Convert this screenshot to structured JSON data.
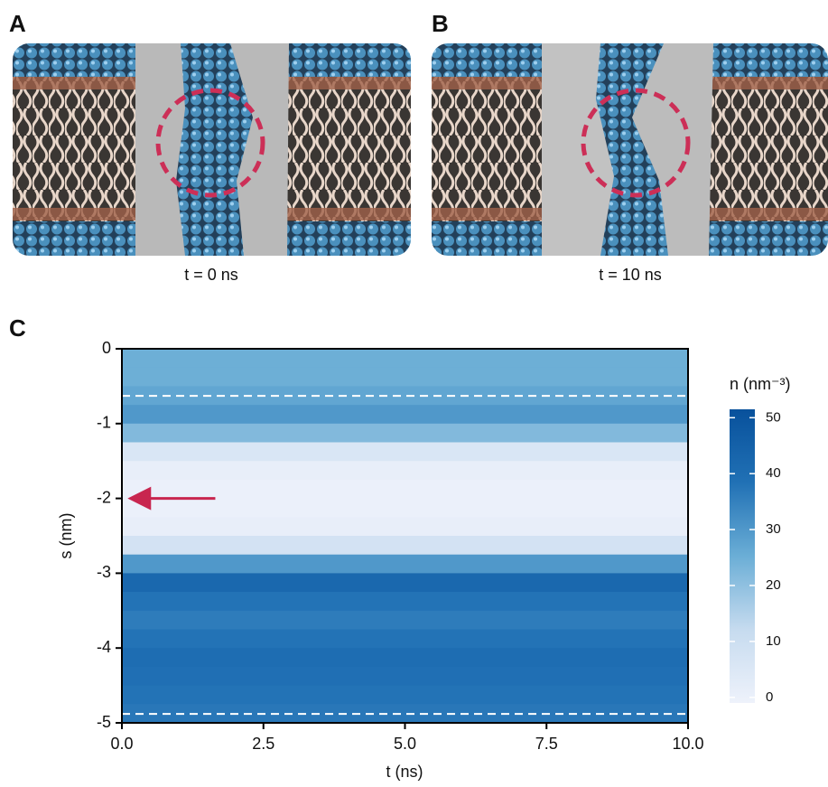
{
  "panels": [
    {
      "label": "A",
      "caption": "t = 0 ns"
    },
    {
      "label": "B",
      "caption": "t = 10 ns"
    }
  ],
  "chart_data": {
    "type": "heatmap",
    "panel": "C",
    "xlabel": "t  (ns)",
    "ylabel": "s  (nm)",
    "xlim": [
      0,
      10
    ],
    "xticks": [
      {
        "value": 0,
        "label": "0.0"
      },
      {
        "value": 2.5,
        "label": "2.5"
      },
      {
        "value": 5,
        "label": "5.0"
      },
      {
        "value": 7.5,
        "label": "7.5"
      },
      {
        "value": 10,
        "label": "10.0"
      }
    ],
    "ylim": [
      -5,
      0
    ],
    "yticks": [
      0,
      -1,
      -2,
      -3,
      -4,
      -5
    ],
    "y_bins": [
      0,
      -0.25,
      -0.5,
      -0.75,
      -1,
      -1.25,
      -1.5,
      -1.75,
      -2,
      -2.25,
      -2.5,
      -2.75,
      -3,
      -3.25,
      -3.5,
      -3.75,
      -4,
      -4.25,
      -4.5,
      -4.75,
      -5
    ],
    "values": [
      25,
      25,
      27,
      30,
      22,
      6,
      1,
      0,
      0,
      1,
      8,
      30,
      42,
      38,
      36,
      38,
      40,
      39,
      38,
      37
    ],
    "hlines": [
      -0.63,
      -4.88
    ],
    "arrow": {
      "from": [
        1.65,
        -2
      ],
      "to": [
        0.1,
        -2
      ],
      "color": "#c8264f"
    },
    "colorbar_label": "n  (nm⁻³)",
    "clim": [
      -1,
      51.5
    ],
    "cticks": [
      0,
      10,
      20,
      30,
      40,
      50
    ],
    "colormap": [
      "#eef2fb",
      "#c6dbef",
      "#6baed6",
      "#2171b5",
      "#08519c"
    ]
  }
}
